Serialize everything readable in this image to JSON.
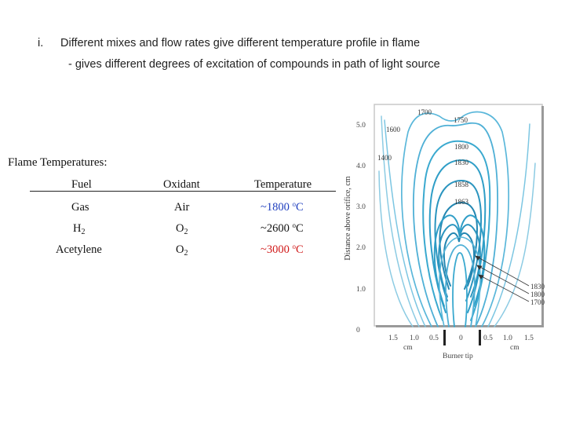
{
  "slide": {
    "bullet_number": "i.",
    "bullet_text": "Different mixes and flow rates give different temperature profile in flame",
    "sub_text": "- gives different degrees of excitation of compounds in path of light source"
  },
  "flame_table": {
    "title": "Flame Temperatures:",
    "headers": [
      "Fuel",
      "Oxidant",
      "Temperature"
    ],
    "rows": [
      {
        "fuel": "Gas",
        "oxidant": "Air",
        "temp_prefix": "~",
        "temp_value": "1800",
        "temp_unit": "C",
        "temp_color": "#1f3fbf"
      },
      {
        "fuel": "H",
        "fuel_sub": "2",
        "oxidant": "O",
        "oxidant_sub": "2",
        "temp_prefix": "~",
        "temp_value": "2600",
        "temp_unit": "C",
        "temp_color": "#111111"
      },
      {
        "fuel": "Acetylene",
        "oxidant": "O",
        "oxidant_sub": "2",
        "temp_prefix": "~",
        "temp_value": "3000",
        "temp_unit": "C",
        "temp_color": "#d01818"
      }
    ],
    "degree_symbol": "o"
  },
  "flame_diagram": {
    "y_axis_label": "Distance above orifice, cm",
    "y_ticks": [
      "0",
      "1.0",
      "2.0",
      "3.0",
      "4.0",
      "5.0"
    ],
    "x_ticks": [
      "1.5",
      "1.0",
      "0.5",
      "0",
      "0.5",
      "1.0",
      "1.5"
    ],
    "x_unit_left": "cm",
    "x_unit_right": "cm",
    "burner_label": "Burner tip",
    "contour_labels": [
      "1700",
      "1750",
      "1600",
      "1800",
      "1400",
      "1830",
      "1858",
      "1863"
    ],
    "callout_labels": [
      "1830",
      "1800",
      "1700"
    ],
    "colors": {
      "contour": "#3aa9cf",
      "contour_light": "#7cc6e2",
      "contour_dark": "#1d7fa8",
      "panel_border": "#bbbbbb"
    }
  }
}
